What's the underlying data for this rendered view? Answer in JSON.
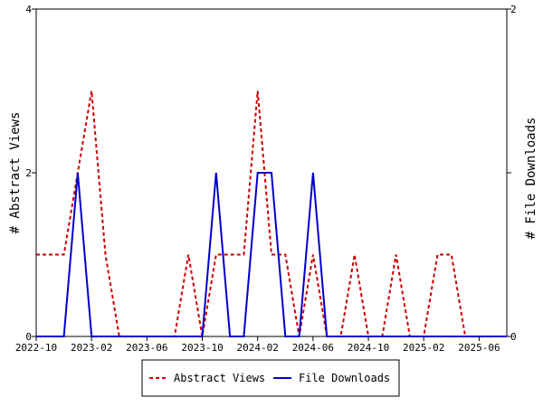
{
  "chart_data": {
    "type": "line",
    "title": "",
    "x": [
      "2022-10",
      "2022-11",
      "2022-12",
      "2023-01",
      "2023-02",
      "2023-03",
      "2023-04",
      "2023-05",
      "2023-06",
      "2023-07",
      "2023-08",
      "2023-09",
      "2023-10",
      "2023-11",
      "2023-12",
      "2024-01",
      "2024-02",
      "2024-03",
      "2024-04",
      "2024-05",
      "2024-06",
      "2024-07",
      "2024-08",
      "2024-09",
      "2024-10",
      "2024-11",
      "2024-12",
      "2025-01",
      "2025-02",
      "2025-03",
      "2025-04",
      "2025-05",
      "2025-06",
      "2025-07",
      "2025-08"
    ],
    "x_ticks": [
      "2022-10",
      "2023-02",
      "2023-06",
      "2023-10",
      "2024-02",
      "2024-06",
      "2024-10",
      "2025-02",
      "2025-06"
    ],
    "x_range": [
      "2022-10",
      "2025-08"
    ],
    "left_axis": {
      "label": "# Abstract Views",
      "range": [
        0,
        4
      ],
      "ticks": [
        0,
        2,
        4
      ]
    },
    "right_axis": {
      "label": "# File Downloads",
      "range": [
        0,
        2
      ],
      "ticks": [
        0,
        1,
        2
      ],
      "tick_labels": [
        "0",
        "",
        "2"
      ]
    },
    "grid": false,
    "legend": {
      "placement": "bottom-center",
      "entries": [
        {
          "name": "Abstract Views",
          "color": "#cc0000",
          "style": "dashed"
        },
        {
          "name": "File Downloads",
          "color": "#0000cc",
          "style": "solid"
        }
      ]
    },
    "series": [
      {
        "name": "Abstract Views",
        "axis": "left",
        "color": "#cc0000",
        "dash": true,
        "values": [
          1,
          1,
          1,
          2,
          3,
          1,
          0,
          0,
          0,
          0,
          0,
          1,
          0,
          1,
          1,
          1,
          3,
          1,
          1,
          0,
          1,
          0,
          0,
          1,
          0,
          0,
          1,
          0,
          0,
          1,
          1,
          0,
          0,
          0,
          0
        ]
      },
      {
        "name": "File Downloads",
        "axis": "right",
        "color": "#0000cc",
        "dash": false,
        "values": [
          0,
          0,
          0,
          1,
          0,
          0,
          0,
          0,
          0,
          0,
          0,
          0,
          0,
          1,
          0,
          0,
          1,
          1,
          0,
          0,
          1,
          0,
          0,
          0,
          0,
          0,
          0,
          0,
          0,
          0,
          0,
          0,
          0,
          0,
          0
        ]
      }
    ]
  }
}
